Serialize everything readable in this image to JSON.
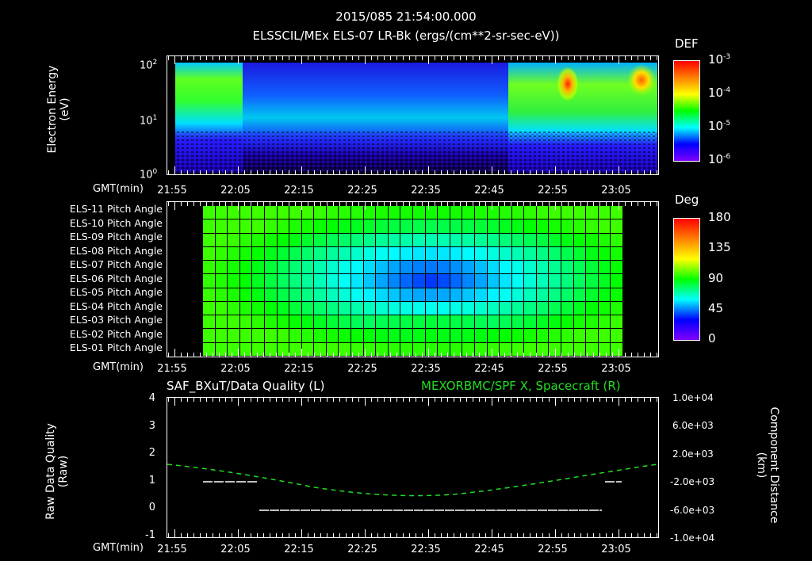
{
  "header": {
    "datetime": "2015/085 21:54:00.000",
    "subtitle": "ELSSCIL/MEx ELS-07 LR-Bk  (ergs/(cm**2-sr-sec-eV))"
  },
  "time_axis": {
    "label": "GMT(min)",
    "ticks": [
      "21:55",
      "22:05",
      "22:15",
      "22:25",
      "22:35",
      "22:45",
      "22:55",
      "23:05"
    ]
  },
  "panel1": {
    "ylabel_line1": "Electron Energy",
    "ylabel_line2": "(eV)",
    "yticks": [
      {
        "base": "10",
        "exp": "2"
      },
      {
        "base": "10",
        "exp": "1"
      },
      {
        "base": "10",
        "exp": "0"
      }
    ],
    "colorbar": {
      "title": "DEF",
      "ticks": [
        {
          "base": "10",
          "exp": "-3"
        },
        {
          "base": "10",
          "exp": "-4"
        },
        {
          "base": "10",
          "exp": "-5"
        },
        {
          "base": "10",
          "exp": "-6"
        }
      ]
    }
  },
  "panel2": {
    "rows": [
      "ELS-11 Pitch Angle",
      "ELS-10 Pitch Angle",
      "ELS-09 Pitch Angle",
      "ELS-08 Pitch Angle",
      "ELS-07 Pitch Angle",
      "ELS-06 Pitch Angle",
      "ELS-05 Pitch Angle",
      "ELS-04 Pitch Angle",
      "ELS-03 Pitch Angle",
      "ELS-02 Pitch Angle",
      "ELS-01 Pitch Angle"
    ],
    "colorbar": {
      "title": "Deg",
      "ticks": [
        "180",
        "135",
        "90",
        "45",
        "0"
      ]
    }
  },
  "panel3": {
    "left_title": "SAF_BXuT/Data Quality (L)",
    "right_title": "MEXORBMC/SPF X, Spacecraft (R)",
    "right_title_color": "#22dd22",
    "ylabel_left_line1": "Raw Data Quality",
    "ylabel_left_line2": "(Raw)",
    "ylabel_right_line1": "Component Distance",
    "ylabel_right_line2": "(km)",
    "yticks_left": [
      "4",
      "3",
      "2",
      "1",
      "0",
      "-1"
    ],
    "yticks_right": [
      "1.0e+04",
      "6.0e+03",
      "2.0e+03",
      "-2.0e+03",
      "-6.0e+03",
      "-1.0e+04"
    ]
  },
  "chart_data": [
    {
      "type": "heatmap",
      "title": "ELSSCIL/MEx ELS-07 LR-Bk (ergs/(cm**2-sr-sec-eV))",
      "xlabel": "GMT(min)",
      "ylabel": "Electron Energy (eV)",
      "x_range": [
        "21:54",
        "23:12"
      ],
      "y_scale": "log",
      "ylim": [
        1,
        150
      ],
      "colorbar": {
        "label": "DEF",
        "scale": "log",
        "range": [
          1e-06,
          0.001
        ]
      },
      "features": [
        {
          "time": "21:55-22:05",
          "energy_eV": "20-80",
          "level": "~1e-4 (green/yellow)"
        },
        {
          "time": "22:05-22:45",
          "energy_eV": "5-100",
          "level": "~1e-5 (cyan/blue)"
        },
        {
          "time": "22:45-23:12",
          "energy_eV": "10-100",
          "level": "~1e-4 (green)"
        },
        {
          "time": "22:56",
          "energy_eV": "~60",
          "level": "~1e-3 (red peak)"
        },
        {
          "time": "23:08",
          "energy_eV": "~60",
          "level": "~5e-4 (orange peak)"
        }
      ]
    },
    {
      "type": "heatmap",
      "title": "Pitch Angle",
      "xlabel": "GMT(min)",
      "categories": [
        "ELS-11",
        "ELS-10",
        "ELS-09",
        "ELS-08",
        "ELS-07",
        "ELS-06",
        "ELS-05",
        "ELS-04",
        "ELS-03",
        "ELS-02",
        "ELS-01"
      ],
      "x_range": [
        "22:00",
        "23:07"
      ],
      "colorbar": {
        "label": "Deg",
        "range": [
          0,
          180
        ]
      },
      "description": "Min ~40 deg near ELS-07/06 around 22:35; edges ~90-110 deg"
    },
    {
      "type": "line",
      "xlabel": "GMT(min)",
      "series": [
        {
          "name": "SAF_BXuT/Data Quality (L)",
          "axis": "left",
          "color": "#ffffff",
          "points": [
            [
              "22:00",
              1
            ],
            [
              "22:10",
              1
            ],
            [
              "22:10",
              0
            ],
            [
              "23:04",
              0
            ],
            [
              "23:04",
              1
            ],
            [
              "23:06",
              1
            ]
          ]
        },
        {
          "name": "MEXORBMC/SPF X, Spacecraft (R)",
          "axis": "right",
          "color": "#22dd22",
          "points": [
            [
              "21:54",
              2200
            ],
            [
              "22:05",
              1000
            ],
            [
              "22:15",
              -300
            ],
            [
              "22:25",
              -1300
            ],
            [
              "22:35",
              -1700
            ],
            [
              "22:45",
              -1300
            ],
            [
              "22:55",
              -300
            ],
            [
              "23:05",
              1000
            ],
            [
              "23:12",
              2400
            ]
          ]
        }
      ],
      "ylim_left": [
        -1,
        4
      ],
      "ylim_right": [
        -10000,
        10000
      ]
    }
  ]
}
